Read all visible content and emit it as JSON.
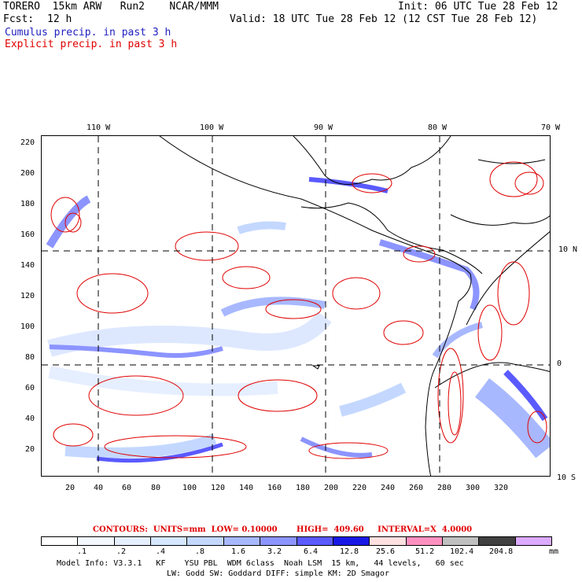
{
  "header": {
    "model_line": "TORERO  15km ARW   Run2    NCAR/MMM",
    "init": "Init: 06 UTC Tue 28 Feb 12",
    "fcst_label": "Fcst:",
    "fcst_value": "12 h",
    "valid": "Valid: 18 UTC Tue 28 Feb 12 (12 CST Tue 28 Feb 12)",
    "cumulus": "Cumulus precip. in past 3 h",
    "explicit": "Explicit precip. in past 3 h"
  },
  "axes": {
    "top_lon": [
      "110 W",
      "100 W",
      "90 W",
      "80 W",
      "70 W"
    ],
    "right_lat": [
      "10 N",
      "0",
      "10 S"
    ],
    "left_y": [
      "220",
      "200",
      "180",
      "160",
      "140",
      "120",
      "100",
      "80",
      "60",
      "40",
      "20"
    ],
    "bottom_x": [
      "20",
      "40",
      "60",
      "80",
      "100",
      "120",
      "140",
      "160",
      "180",
      "200",
      "220",
      "240",
      "260",
      "280",
      "300",
      "320"
    ]
  },
  "contours_text": "CONTOURS:  UNITS=mm  LOW= 0.10000       HIGH=  409.60     INTERVAL=X  4.0000",
  "colorbar": {
    "colors": [
      "#ffffff",
      "#f4f8ff",
      "#e6efff",
      "#d6e8ff",
      "#c4d8ff",
      "#a8b8ff",
      "#8c94ff",
      "#5a5aff",
      "#1818e6",
      "#ffe0e0",
      "#ff90c0",
      "#c0c0c0",
      "#404040",
      "#dcaaff"
    ],
    "labels": [
      ".1",
      ".2",
      ".4",
      ".8",
      "1.6",
      "3.2",
      "6.4",
      "12.8",
      "25.6",
      "51.2",
      "102.4",
      "204.8"
    ],
    "units": "mm"
  },
  "footer": {
    "line1": "Model Info: V3.3.1   KF    YSU PBL  WDM 6class  Noah LSM  15 km,   44 levels,   60 sec",
    "line2": "LW: Godd SW: Goddard DIFF: simple KM: 2D Smagor"
  }
}
